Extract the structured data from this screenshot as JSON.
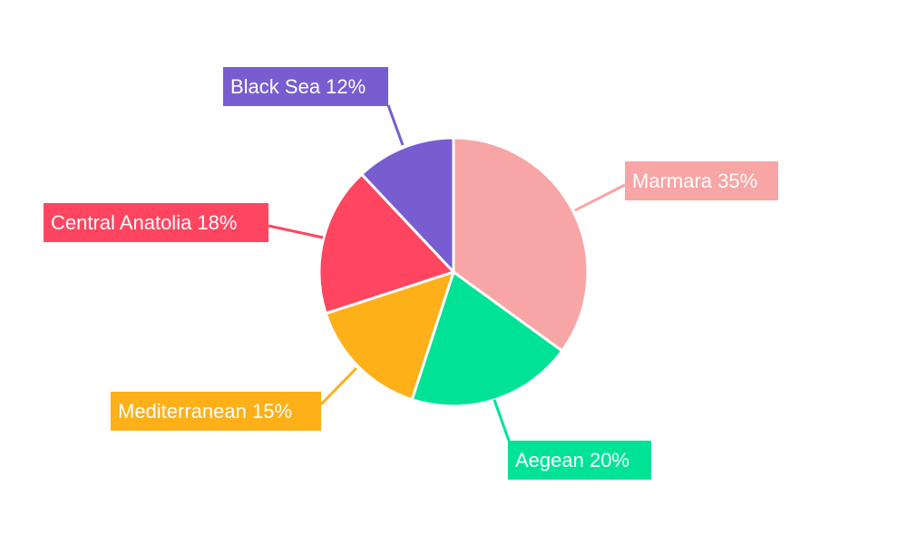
{
  "chart_data": {
    "type": "pie",
    "title": "",
    "start_angle_deg": 0,
    "direction": "clockwise",
    "legend": "none",
    "slices": [
      {
        "label": "Marmara",
        "value": 35,
        "display": "Marmara 35%",
        "color": "#F8A5A6"
      },
      {
        "label": "Aegean",
        "value": 20,
        "display": "Aegean 20%",
        "color": "#00E396"
      },
      {
        "label": "Mediterranean",
        "value": 15,
        "display": "Mediterranean 15%",
        "color": "#FEB019"
      },
      {
        "label": "Central Anatolia",
        "value": 18,
        "display": "Central Anatolia 18%",
        "color": "#FF4560"
      },
      {
        "label": "Black Sea",
        "value": 12,
        "display": "Black Sea 12%",
        "color": "#775DD0"
      }
    ]
  }
}
